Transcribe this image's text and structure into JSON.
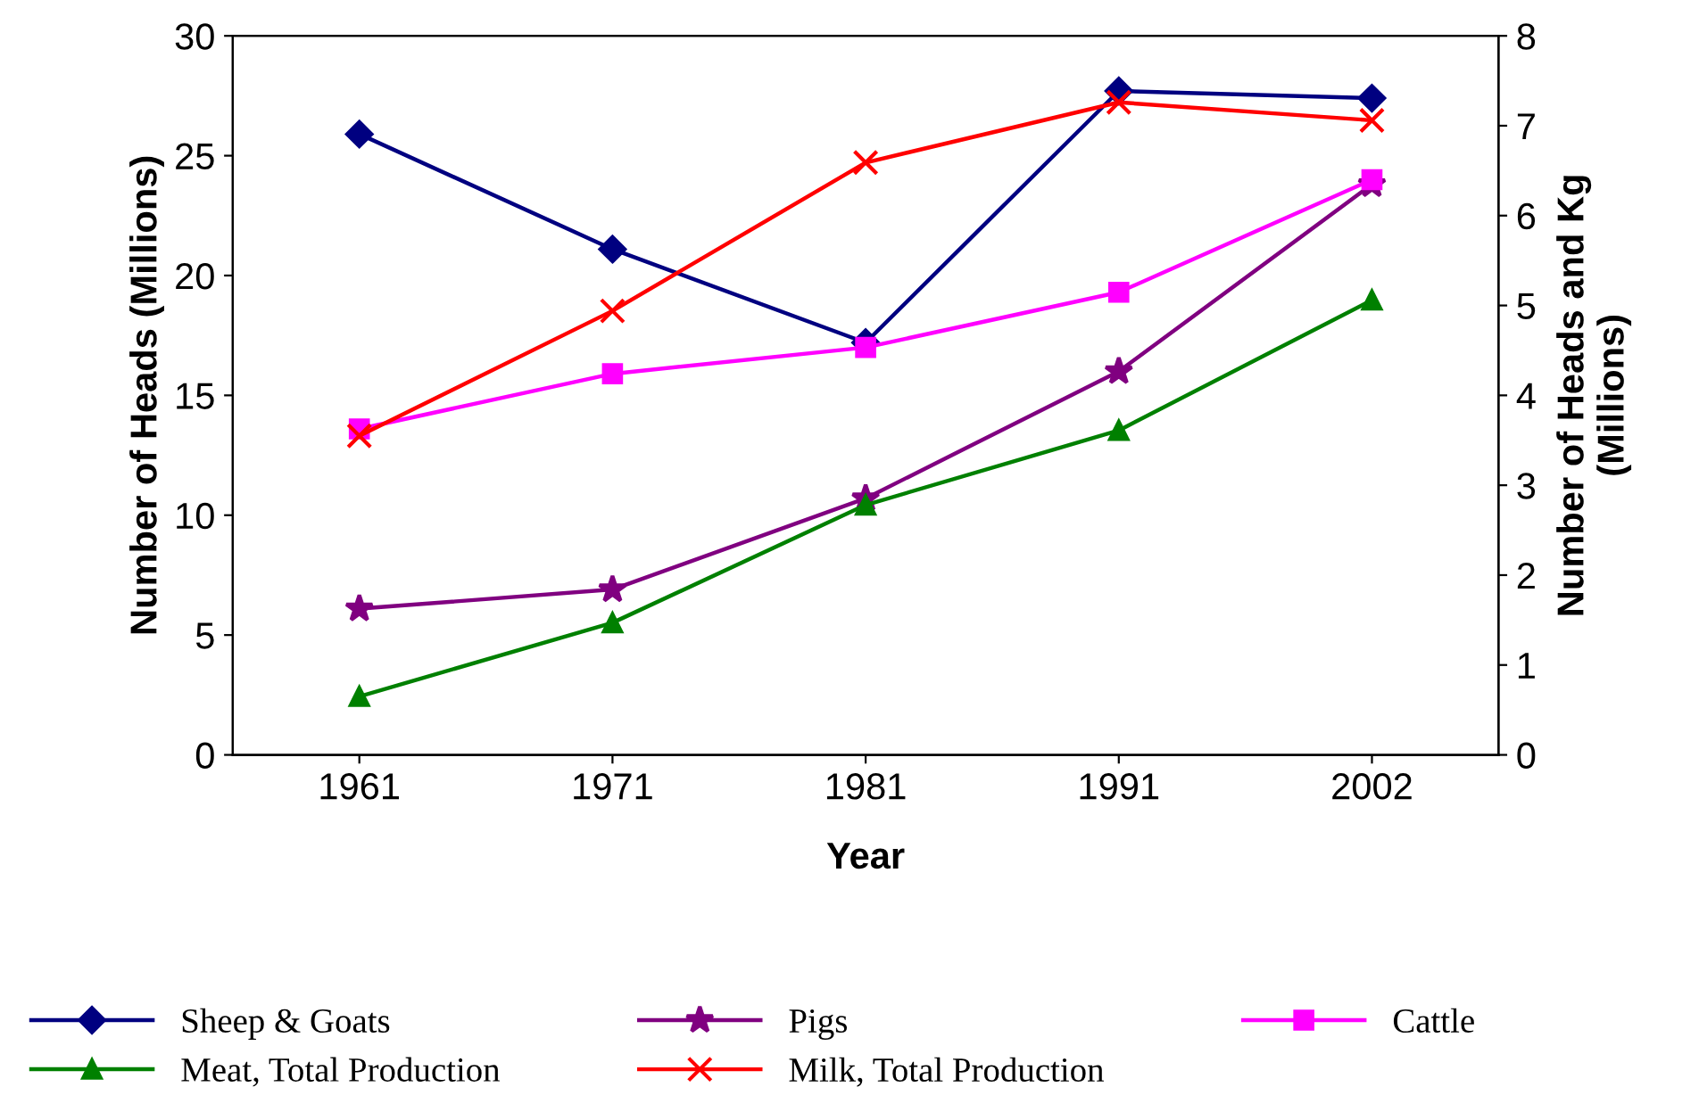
{
  "chart_data": {
    "type": "line",
    "xlabel": "Year",
    "ylabel": "Number of Heads (Millions)",
    "y2label": "Number of Heads and Kg\n(Millions)",
    "categories": [
      "1961",
      "1971",
      "1981",
      "1991",
      "2002"
    ],
    "ylim": [
      0,
      30
    ],
    "yticks": [
      0,
      5,
      10,
      15,
      20,
      25,
      30
    ],
    "y2lim": [
      0,
      8
    ],
    "y2ticks": [
      0,
      1,
      2,
      3,
      4,
      5,
      6,
      7,
      8
    ],
    "grid": false,
    "legend": "bottom",
    "series": [
      {
        "name": "Sheep & Goats",
        "color": "#000080",
        "marker": "diamond",
        "values": [
          25.9,
          21.1,
          17.2,
          27.7,
          27.4
        ]
      },
      {
        "name": "Pigs",
        "color": "#800080",
        "marker": "star",
        "values": [
          6.1,
          6.9,
          10.7,
          16.0,
          23.8
        ]
      },
      {
        "name": "Cattle",
        "color": "#ff00ff",
        "marker": "square",
        "values": [
          13.6,
          15.9,
          17.0,
          19.3,
          24.0
        ]
      },
      {
        "name": "Meat, Total Production",
        "color": "#008000",
        "marker": "triangle",
        "axis": "y2",
        "values": [
          0.65,
          1.47,
          2.78,
          3.61,
          5.06
        ]
      },
      {
        "name": "Milk, Total Production",
        "color": "#ff0000",
        "marker": "cross",
        "axis": "y2",
        "values": [
          3.55,
          4.94,
          6.59,
          7.26,
          7.06
        ]
      }
    ]
  }
}
